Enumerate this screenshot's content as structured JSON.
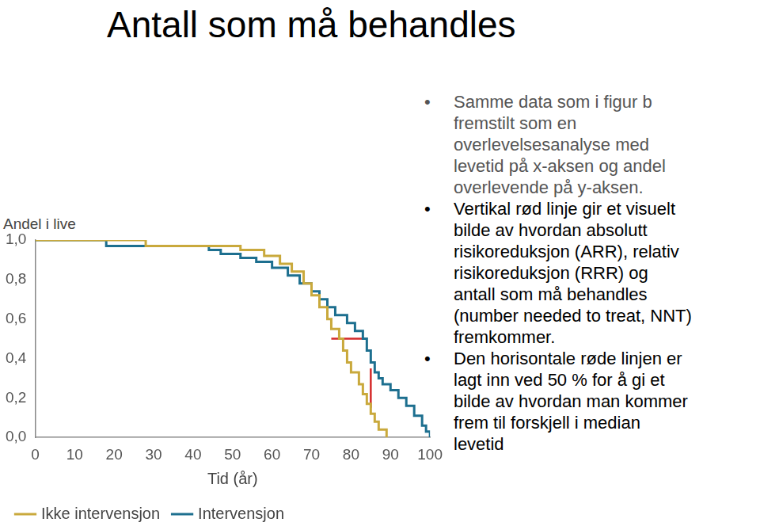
{
  "title": "Antall som må behandles",
  "bullets": [
    {
      "lines": [
        "Samme data som i figur b",
        "fremstilt som en",
        "overlevelsesanalyse med",
        "levetid på x-aksen og andel",
        "overlevende på y-aksen."
      ],
      "color": "#555555"
    },
    {
      "lines": [
        "Vertikal rød linje gir et visuelt",
        "bilde av hvordan absolutt",
        "risikoreduksjon (ARR), relativ",
        "risikoreduksjon (RRR) og",
        "antall som må behandles",
        "(number needed to treat, NNT)",
        "fremkommer."
      ],
      "color": "#000000"
    },
    {
      "lines": [
        "Den horisontale røde linjen er",
        "lagt inn ved 50 % for å gi et",
        "bilde av hvordan man kommer",
        "frem til forskjell i median",
        "levetid"
      ],
      "color": "#000000"
    }
  ],
  "chart_data": {
    "type": "line",
    "line_style": "stepped",
    "y_label": "Andel i live",
    "x_label": "Tid (år)",
    "xlim": [
      0,
      100
    ],
    "xticks": [
      0,
      10,
      20,
      30,
      40,
      50,
      60,
      70,
      80,
      90,
      100
    ],
    "ylim": [
      0,
      1
    ],
    "yticks": [
      {
        "value": 0,
        "label": "0,0"
      },
      {
        "value": 0.2,
        "label": "0,2"
      },
      {
        "value": 0.4,
        "label": "0,4"
      },
      {
        "value": 0.6,
        "label": "0,6"
      },
      {
        "value": 0.8,
        "label": "0,8"
      },
      {
        "value": 1,
        "label": "1,0"
      }
    ],
    "grid": false,
    "legend": "bottom-left",
    "series": [
      {
        "name": "Ikke intervensjon",
        "color": "#c9a93c",
        "x": [
          0,
          28,
          52,
          58,
          62,
          65,
          68,
          70,
          72,
          74,
          75,
          77,
          78,
          79,
          80,
          82,
          83,
          84,
          85,
          86,
          87,
          89
        ],
        "values": [
          1.0,
          0.97,
          0.95,
          0.92,
          0.88,
          0.84,
          0.78,
          0.72,
          0.66,
          0.6,
          0.55,
          0.5,
          0.44,
          0.38,
          0.33,
          0.27,
          0.22,
          0.17,
          0.12,
          0.08,
          0.04,
          0.0
        ]
      },
      {
        "name": "Intervensjon",
        "color": "#1d6f8f",
        "x": [
          0,
          18,
          44,
          47,
          52,
          56,
          60,
          64,
          67,
          70,
          72,
          74,
          76,
          79,
          81,
          83,
          84,
          85,
          86,
          87,
          88,
          90,
          92,
          94,
          96,
          98,
          99,
          100
        ],
        "values": [
          1.0,
          0.97,
          0.95,
          0.93,
          0.91,
          0.89,
          0.86,
          0.82,
          0.78,
          0.74,
          0.7,
          0.66,
          0.62,
          0.58,
          0.54,
          0.5,
          0.44,
          0.38,
          0.33,
          0.3,
          0.27,
          0.24,
          0.2,
          0.16,
          0.11,
          0.06,
          0.03,
          0.0
        ]
      }
    ],
    "annotations": [
      {
        "type": "line",
        "color": "#d42a2a",
        "x": [
          75,
          83
        ],
        "values": [
          0.5,
          0.5
        ]
      },
      {
        "type": "line",
        "color": "#d42a2a",
        "x": [
          85,
          85
        ],
        "values": [
          0.15,
          0.35
        ]
      }
    ]
  }
}
